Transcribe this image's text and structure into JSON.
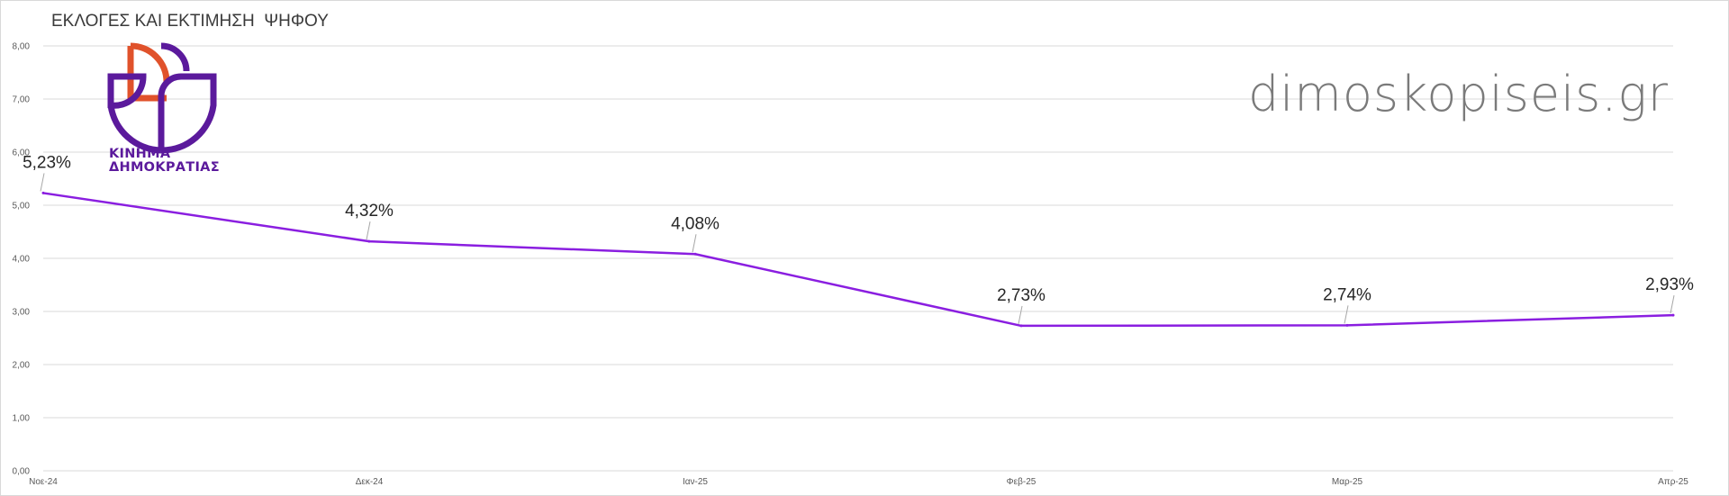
{
  "header": {
    "title": "ΕΚΛΟΓΕΣ ΚΑΙ ΕΚΤΙΜΗΣΗ  ΨΗΦΟΥ",
    "watermark": "dimoskopiseis.gr"
  },
  "party": {
    "name_line1": "ΚΙΝΗΜΑ",
    "name_line2": "ΔΗΜΟΚΡΑΤΙΑΣ",
    "color_primary": "#5b1a9c",
    "color_accent": "#e0522b",
    "logo_icon": "kinima-dimokratias-logo"
  },
  "chart_data": {
    "type": "line",
    "categories": [
      "Νοε-24",
      "Δεκ-24",
      "Ιαν-25",
      "Φεβ-25",
      "Μαρ-25",
      "Απρ-25"
    ],
    "series": [
      {
        "values": [
          5.23,
          4.32,
          4.08,
          2.73,
          2.74,
          2.93
        ],
        "labels": [
          "5,23%",
          "4,32%",
          "4,08%",
          "2,73%",
          "2,74%",
          "2,93%"
        ],
        "color": "#8a1ee0"
      }
    ],
    "ylim": [
      0,
      8
    ],
    "yticks": [
      "0,00",
      "1,00",
      "2,00",
      "3,00",
      "4,00",
      "5,00",
      "6,00",
      "7,00",
      "8,00"
    ],
    "grid": true,
    "legend": "none",
    "xlabel": "",
    "ylabel": ""
  }
}
